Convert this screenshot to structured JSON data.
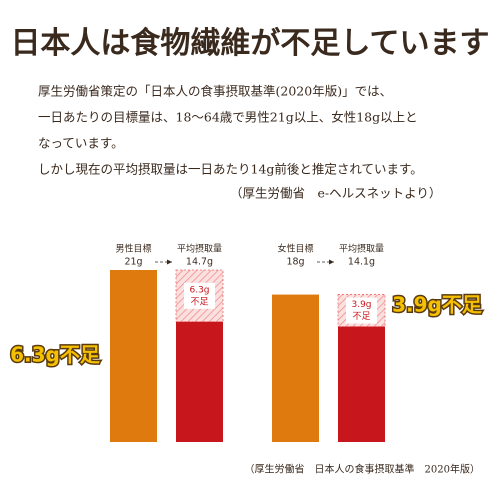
{
  "title": "日本人は食物繊維が不足しています",
  "body": [
    "厚生労働省策定の「日本人の食事摂取基準(2020年版)」では、",
    "一日あたりの目標量は、18～64歳で男性21g以上、女性18g以上と",
    "なっています。",
    "しかし現在の平均摂取量は一日あたり14g前後と推定されています。"
  ],
  "source_note": "（厚生労働省　e-ヘルスネットより）",
  "chart_data": {
    "type": "bar",
    "groups": [
      {
        "labels": [
          "男性目標",
          "平均摂取量"
        ],
        "values": [
          21,
          14.7
        ],
        "value_labels": [
          "21g",
          "14.7g"
        ],
        "colors": [
          "#de7a0e",
          "#c8161d"
        ],
        "shortfall": 6.3,
        "shortfall_labels": [
          "6.3g",
          "不足"
        ],
        "callout": "6.3g不足"
      },
      {
        "labels": [
          "女性目標",
          "平均摂取量"
        ],
        "values": [
          18,
          14.1
        ],
        "value_labels": [
          "18g",
          "14.1g"
        ],
        "colors": [
          "#de7a0e",
          "#c8161d"
        ],
        "shortfall": 3.9,
        "shortfall_labels": [
          "3.9g",
          "不足"
        ],
        "callout": "3.9g不足"
      }
    ],
    "source": "（厚生労働省　日本人の食事摂取基準　2020年版）"
  }
}
